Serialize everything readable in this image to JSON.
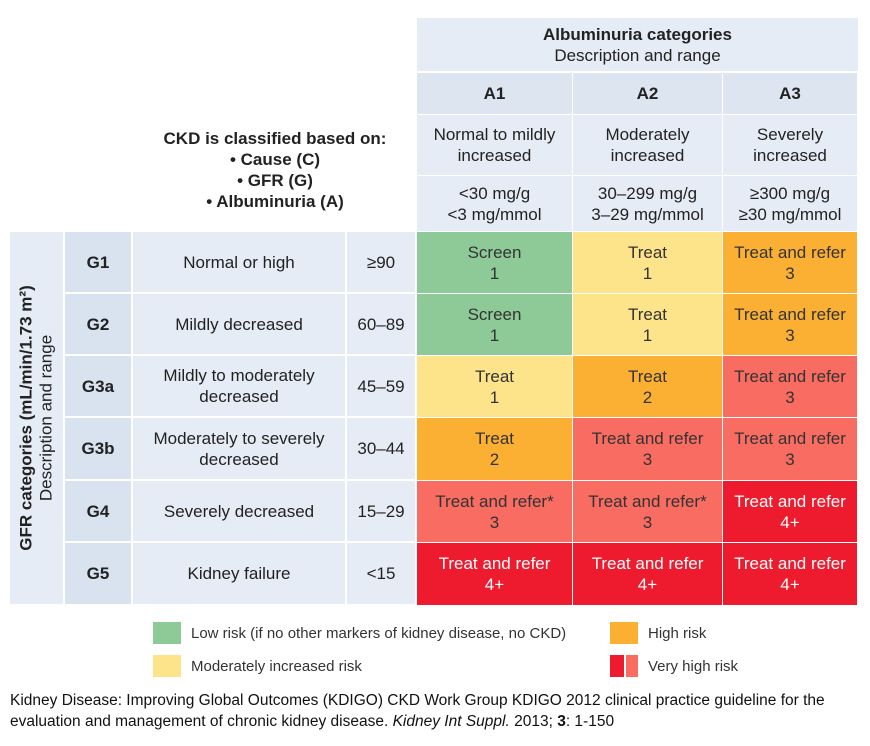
{
  "albuminuria": {
    "title": "Albuminuria categories",
    "subtitle": "Description and range",
    "columns": [
      {
        "code": "A1",
        "desc": "Normal to mildly increased",
        "range1": "<30 mg/g",
        "range2": "<3 mg/mmol"
      },
      {
        "code": "A2",
        "desc": "Moderately increased",
        "range1": "30–299 mg/g",
        "range2": "3–29 mg/mmol"
      },
      {
        "code": "A3",
        "desc": "Severely increased",
        "range1": "≥300 mg/g",
        "range2": "≥30 mg/mmol"
      }
    ]
  },
  "classification": {
    "title": "CKD is classified based on:",
    "items": [
      "• Cause (C)",
      "• GFR (G)",
      "• Albuminuria (A)"
    ]
  },
  "gfr": {
    "title": "GFR categories (mL/min/1.73 m²)",
    "subtitle": "Description and range",
    "rows": [
      {
        "code": "G1",
        "desc": "Normal or high",
        "range": "≥90",
        "cells": [
          {
            "action": "Screen",
            "value": "1",
            "risk": "green"
          },
          {
            "action": "Treat",
            "value": "1",
            "risk": "yellow"
          },
          {
            "action": "Treat and refer",
            "value": "3",
            "risk": "orange"
          }
        ]
      },
      {
        "code": "G2",
        "desc": "Mildly decreased",
        "range": "60–89",
        "cells": [
          {
            "action": "Screen",
            "value": "1",
            "risk": "green"
          },
          {
            "action": "Treat",
            "value": "1",
            "risk": "yellow"
          },
          {
            "action": "Treat and refer",
            "value": "3",
            "risk": "orange"
          }
        ]
      },
      {
        "code": "G3a",
        "desc": "Mildly to moderately decreased",
        "range": "45–59",
        "cells": [
          {
            "action": "Treat",
            "value": "1",
            "risk": "yellow"
          },
          {
            "action": "Treat",
            "value": "2",
            "risk": "orange"
          },
          {
            "action": "Treat and refer",
            "value": "3",
            "risk": "lred"
          }
        ]
      },
      {
        "code": "G3b",
        "desc": "Moderately to severely decreased",
        "range": "30–44",
        "cells": [
          {
            "action": "Treat",
            "value": "2",
            "risk": "orange"
          },
          {
            "action": "Treat and refer",
            "value": "3",
            "risk": "lred"
          },
          {
            "action": "Treat and refer",
            "value": "3",
            "risk": "lred"
          }
        ]
      },
      {
        "code": "G4",
        "desc": "Severely decreased",
        "range": "15–29",
        "cells": [
          {
            "action": "Treat and refer*",
            "value": "3",
            "risk": "lred"
          },
          {
            "action": "Treat and refer*",
            "value": "3",
            "risk": "lred"
          },
          {
            "action": "Treat and refer",
            "value": "4+",
            "risk": "red"
          }
        ]
      },
      {
        "code": "G5",
        "desc": "Kidney failure",
        "range": "<15",
        "cells": [
          {
            "action": "Treat and refer",
            "value": "4+",
            "risk": "red"
          },
          {
            "action": "Treat and refer",
            "value": "4+",
            "risk": "red"
          },
          {
            "action": "Treat and refer",
            "value": "4+",
            "risk": "red"
          }
        ]
      }
    ]
  },
  "legend": {
    "low": "Low risk (if no other markers of kidney disease, no CKD)",
    "moderate": "Moderately increased risk",
    "high": "High risk",
    "very_high": "Very high risk"
  },
  "colors": {
    "green": "#8dca97",
    "yellow": "#fde48a",
    "orange": "#fbb033",
    "lred": "#f86c62",
    "red": "#ee1b2f"
  },
  "footer": {
    "text": "Kidney Disease: Improving Global Outcomes (KDIGO) CKD Work Group KDIGO 2012 clinical practice guideline for the evaluation and management of chronic kidney disease. ",
    "journal": "Kidney Int Suppl.",
    "year": " 2013; ",
    "volume": "3",
    "pages": ": 1-150"
  }
}
